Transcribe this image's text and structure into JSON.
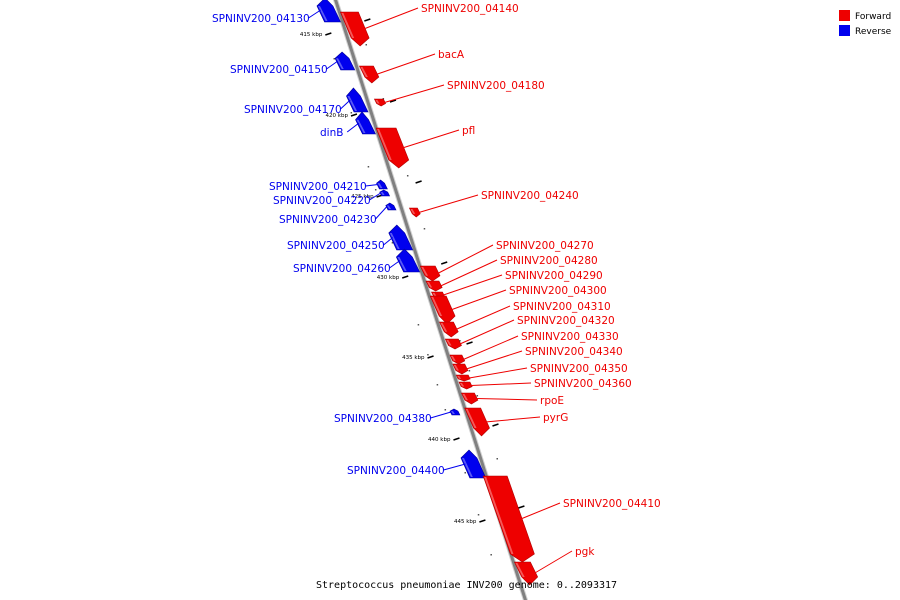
{
  "caption": "Streptococcus pneumoniae INV200 genome: 0..2093317",
  "legend": [
    {
      "label": "Forward",
      "color": "#ee0000"
    },
    {
      "label": "Reverse",
      "color": "#0000ee"
    }
  ],
  "colors": {
    "forward": "#ee0000",
    "reverse": "#0000ee",
    "backbone": "#808080"
  },
  "ticks": [
    "415 kbp",
    "420 kbp",
    "425 kbp",
    "430 kbp",
    "435 kbp",
    "440 kbp",
    "445 kbp"
  ],
  "genes": [
    {
      "name": "SPNINV200_04130",
      "strand": "reverse"
    },
    {
      "name": "SPNINV200_04140",
      "strand": "forward"
    },
    {
      "name": "SPNINV200_04150",
      "strand": "reverse"
    },
    {
      "name": "bacA",
      "strand": "forward"
    },
    {
      "name": "SPNINV200_04180",
      "strand": "forward"
    },
    {
      "name": "SPNINV200_04170",
      "strand": "reverse"
    },
    {
      "name": "dinB",
      "strand": "reverse"
    },
    {
      "name": "pfl",
      "strand": "forward"
    },
    {
      "name": "SPNINV200_04210",
      "strand": "reverse"
    },
    {
      "name": "SPNINV200_04220",
      "strand": "reverse"
    },
    {
      "name": "SPNINV200_04230",
      "strand": "reverse"
    },
    {
      "name": "SPNINV200_04240",
      "strand": "forward"
    },
    {
      "name": "SPNINV200_04250",
      "strand": "reverse"
    },
    {
      "name": "SPNINV200_04260",
      "strand": "reverse"
    },
    {
      "name": "SPNINV200_04270",
      "strand": "forward"
    },
    {
      "name": "SPNINV200_04280",
      "strand": "forward"
    },
    {
      "name": "SPNINV200_04290",
      "strand": "forward"
    },
    {
      "name": "SPNINV200_04300",
      "strand": "forward"
    },
    {
      "name": "SPNINV200_04310",
      "strand": "forward"
    },
    {
      "name": "SPNINV200_04320",
      "strand": "forward"
    },
    {
      "name": "SPNINV200_04330",
      "strand": "forward"
    },
    {
      "name": "SPNINV200_04340",
      "strand": "forward"
    },
    {
      "name": "SPNINV200_04350",
      "strand": "forward"
    },
    {
      "name": "SPNINV200_04360",
      "strand": "forward"
    },
    {
      "name": "rpoE",
      "strand": "forward"
    },
    {
      "name": "pyrG",
      "strand": "forward"
    },
    {
      "name": "SPNINV200_04380",
      "strand": "reverse"
    },
    {
      "name": "SPNINV200_04400",
      "strand": "reverse"
    },
    {
      "name": "SPNINV200_04410",
      "strand": "forward"
    },
    {
      "name": "pgk",
      "strand": "forward"
    }
  ]
}
